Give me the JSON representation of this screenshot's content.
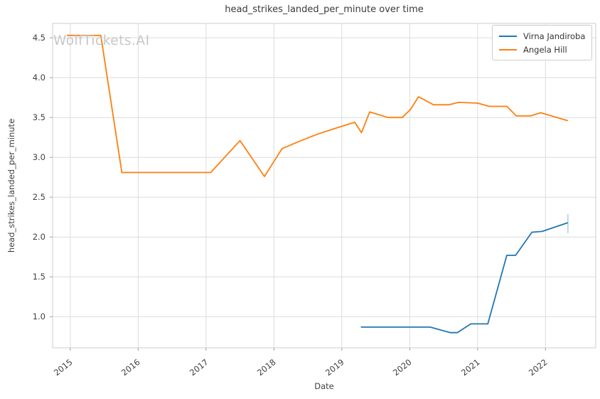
{
  "watermark": "WolfTickets.AI",
  "colors": {
    "background": "#ffffff",
    "grid": "#dcdcdc",
    "spine": "#cccccc",
    "tick_mark": "#999999",
    "title_text": "#3a3a3a",
    "tick_text": "#404040",
    "watermark_text": "#c7c7c7",
    "series_blue": "#1f77b4",
    "series_orange": "#ff7f0e"
  },
  "chart_data": {
    "type": "line",
    "title": "head_strikes_landed_per_minute over time",
    "xlabel": "Date",
    "ylabel": "head_strikes_landed_per_minute",
    "grid": true,
    "legend_position": "upper right",
    "xlim": [
      2014.74,
      2022.74
    ],
    "ylim": [
      0.61,
      4.68
    ],
    "xticks": [
      {
        "value": 2015,
        "label": "2015"
      },
      {
        "value": 2016,
        "label": "2016"
      },
      {
        "value": 2017,
        "label": "2017"
      },
      {
        "value": 2018,
        "label": "2018"
      },
      {
        "value": 2019,
        "label": "2019"
      },
      {
        "value": 2020,
        "label": "2020"
      },
      {
        "value": 2021,
        "label": "2021"
      },
      {
        "value": 2022,
        "label": "2022"
      }
    ],
    "yticks": [
      {
        "value": 1.0,
        "label": "1.0"
      },
      {
        "value": 1.5,
        "label": "1.5"
      },
      {
        "value": 2.0,
        "label": "2.0"
      },
      {
        "value": 2.5,
        "label": "2.5"
      },
      {
        "value": 3.0,
        "label": "3.0"
      },
      {
        "value": 3.5,
        "label": "3.5"
      },
      {
        "value": 4.0,
        "label": "4.0"
      },
      {
        "value": 4.5,
        "label": "4.5"
      }
    ],
    "series": [
      {
        "name": "Virna Jandiroba",
        "color": "#1f77b4",
        "x": [
          2019.28,
          2020.3,
          2020.6,
          2020.7,
          2020.9,
          2021.15,
          2021.43,
          2021.56,
          2021.8,
          2021.95,
          2022.33
        ],
        "y": [
          0.87,
          0.87,
          0.8,
          0.8,
          0.91,
          0.91,
          1.77,
          1.77,
          2.06,
          2.07,
          2.18
        ]
      },
      {
        "name": "Angela Hill",
        "color": "#ff7f0e",
        "x": [
          2014.95,
          2015.45,
          2015.76,
          2017.07,
          2017.5,
          2017.86,
          2018.12,
          2018.4,
          2018.64,
          2018.89,
          2019.19,
          2019.29,
          2019.41,
          2019.68,
          2019.89,
          2020.01,
          2020.13,
          2020.35,
          2020.58,
          2020.72,
          2021.0,
          2021.17,
          2021.43,
          2021.57,
          2021.78,
          2021.93,
          2022.33
        ],
        "y": [
          4.53,
          4.53,
          2.81,
          2.81,
          3.21,
          2.76,
          3.11,
          3.21,
          3.29,
          3.36,
          3.44,
          3.31,
          3.57,
          3.5,
          3.5,
          3.6,
          3.76,
          3.66,
          3.66,
          3.69,
          3.68,
          3.64,
          3.64,
          3.52,
          3.52,
          3.56,
          3.46
        ]
      }
    ],
    "error_bars": [
      {
        "series": "Virna Jandiroba",
        "x": 2022.33,
        "y_low": 2.05,
        "y_high": 2.29,
        "opacity": 0.35
      }
    ]
  }
}
